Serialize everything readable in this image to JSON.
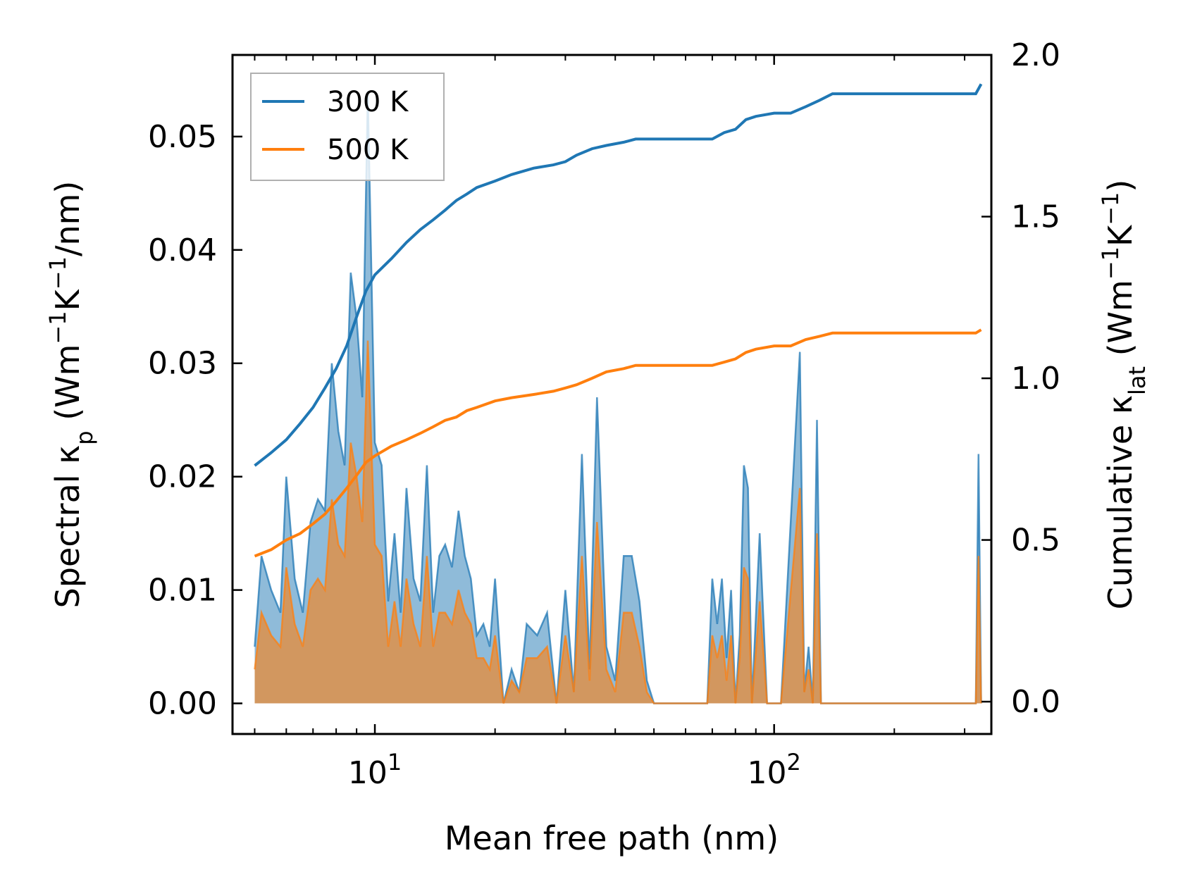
{
  "chart_data": {
    "type": "line",
    "title": "",
    "x": {
      "label": "Mean free path (nm)",
      "scale": "log",
      "range": [
        4.4,
        350
      ],
      "major_ticks": [
        {
          "value": 10,
          "label": "10^1"
        },
        {
          "value": 100,
          "label": "10^2"
        }
      ]
    },
    "y_left": {
      "label": "Spectral κp (Wm^-1K^-1/nm)",
      "range": [
        -0.0027,
        0.0572
      ],
      "ticks": [
        0.0,
        0.01,
        0.02,
        0.03,
        0.04,
        0.05
      ],
      "tick_labels": [
        "0.00",
        "0.01",
        "0.02",
        "0.03",
        "0.04",
        "0.05"
      ]
    },
    "y_right": {
      "label": "Cumulative κlat (Wm^-1K^-1)",
      "range": [
        -0.1,
        2.0
      ],
      "ticks": [
        0.0,
        0.5,
        1.0,
        1.5,
        2.0
      ],
      "tick_labels": [
        "0.0",
        "0.5",
        "1.0",
        "1.5",
        "2.0"
      ]
    },
    "legend": {
      "position": "top-left",
      "entries": [
        "300 K",
        "500 K"
      ]
    },
    "spectral_x": [
      5.0,
      5.2,
      5.5,
      5.8,
      6.0,
      6.3,
      6.6,
      6.9,
      7.2,
      7.5,
      7.8,
      8.1,
      8.4,
      8.7,
      9.0,
      9.3,
      9.6,
      10.0,
      10.4,
      10.8,
      11.2,
      11.6,
      12.0,
      12.5,
      13.0,
      13.5,
      14.0,
      14.5,
      15.0,
      15.6,
      16.2,
      16.8,
      17.4,
      18.0,
      18.7,
      19.4,
      20.0,
      21.0,
      22.0,
      23.0,
      24.0,
      25.5,
      27.0,
      28.5,
      30.0,
      31.5,
      33.0,
      34.5,
      36.0,
      38.0,
      40.0,
      42.0,
      44.0,
      46.0,
      48.0,
      50.0,
      68.0,
      70.0,
      72.0,
      74.0,
      76.0,
      78.0,
      80.0,
      82.0,
      84.0,
      86.0,
      88.0,
      92.0,
      96.0,
      100.0,
      104.0,
      116.0,
      119.0,
      122.0,
      125.0,
      128.0,
      131.0,
      134.0,
      137.0,
      140.0,
      320.0,
      325.0,
      330.0
    ],
    "series": [
      {
        "name": "300 K",
        "color": "#1f77b4",
        "spectral": [
          0.005,
          0.013,
          0.01,
          0.008,
          0.02,
          0.011,
          0.008,
          0.016,
          0.018,
          0.017,
          0.03,
          0.024,
          0.021,
          0.038,
          0.034,
          0.027,
          0.054,
          0.023,
          0.021,
          0.009,
          0.015,
          0.008,
          0.019,
          0.011,
          0.009,
          0.021,
          0.008,
          0.013,
          0.014,
          0.012,
          0.017,
          0.013,
          0.011,
          0.006,
          0.007,
          0.005,
          0.011,
          0.0,
          0.003,
          0.001,
          0.007,
          0.006,
          0.008,
          0.0,
          0.01,
          0.001,
          0.022,
          0.003,
          0.027,
          0.005,
          0.002,
          0.013,
          0.013,
          0.009,
          0.002,
          0.0,
          0.0,
          0.011,
          0.007,
          0.011,
          0.004,
          0.01,
          0.0,
          0.006,
          0.021,
          0.019,
          0.0,
          0.015,
          0.0,
          0.0,
          0.0,
          0.031,
          0.001,
          0.005,
          0.0,
          0.025,
          0.0,
          0.0,
          0.0,
          0.0,
          0.0,
          0.022,
          0.0
        ],
        "cumulative_x": [
          5.0,
          5.5,
          6.0,
          6.5,
          7.0,
          7.5,
          8.0,
          8.5,
          9.0,
          9.5,
          10.0,
          11.0,
          12.0,
          13.0,
          14.0,
          15.0,
          16.0,
          17.0,
          18.0,
          20.0,
          22.0,
          25.0,
          28.0,
          30.0,
          32.0,
          35.0,
          38.0,
          42.0,
          45.0,
          50.0,
          70.0,
          75.0,
          80.0,
          85.0,
          90.0,
          100.0,
          110.0,
          120.0,
          130.0,
          140.0,
          320.0,
          330.0
        ],
        "cumulative": [
          0.73,
          0.77,
          0.81,
          0.86,
          0.91,
          0.97,
          1.03,
          1.1,
          1.19,
          1.27,
          1.32,
          1.37,
          1.42,
          1.46,
          1.49,
          1.52,
          1.55,
          1.57,
          1.59,
          1.61,
          1.63,
          1.65,
          1.66,
          1.67,
          1.69,
          1.71,
          1.72,
          1.73,
          1.74,
          1.74,
          1.74,
          1.76,
          1.77,
          1.8,
          1.81,
          1.82,
          1.82,
          1.84,
          1.86,
          1.88,
          1.88,
          1.91
        ]
      },
      {
        "name": "500 K",
        "color": "#ff7f0e",
        "spectral": [
          0.003,
          0.008,
          0.006,
          0.005,
          0.012,
          0.007,
          0.005,
          0.01,
          0.011,
          0.01,
          0.018,
          0.014,
          0.013,
          0.023,
          0.02,
          0.016,
          0.032,
          0.014,
          0.013,
          0.005,
          0.009,
          0.005,
          0.011,
          0.007,
          0.005,
          0.013,
          0.005,
          0.008,
          0.008,
          0.007,
          0.01,
          0.008,
          0.007,
          0.004,
          0.004,
          0.003,
          0.006,
          0.0,
          0.002,
          0.001,
          0.004,
          0.004,
          0.005,
          0.0,
          0.006,
          0.001,
          0.013,
          0.002,
          0.016,
          0.003,
          0.001,
          0.008,
          0.008,
          0.005,
          0.001,
          0.0,
          0.0,
          0.006,
          0.004,
          0.006,
          0.002,
          0.006,
          0.0,
          0.004,
          0.012,
          0.011,
          0.0,
          0.009,
          0.0,
          0.0,
          0.0,
          0.019,
          0.001,
          0.003,
          0.0,
          0.015,
          0.0,
          0.0,
          0.0,
          0.0,
          0.0,
          0.013,
          0.0
        ],
        "cumulative_x": [
          5.0,
          5.5,
          6.0,
          6.5,
          7.0,
          7.5,
          8.0,
          8.5,
          9.0,
          9.5,
          10.0,
          11.0,
          12.0,
          13.0,
          14.0,
          15.0,
          16.0,
          17.0,
          18.0,
          20.0,
          22.0,
          25.0,
          28.0,
          30.0,
          32.0,
          35.0,
          38.0,
          42.0,
          45.0,
          50.0,
          70.0,
          75.0,
          80.0,
          85.0,
          90.0,
          100.0,
          110.0,
          120.0,
          130.0,
          140.0,
          320.0,
          330.0
        ],
        "cumulative": [
          0.45,
          0.47,
          0.5,
          0.52,
          0.55,
          0.58,
          0.62,
          0.66,
          0.7,
          0.74,
          0.76,
          0.79,
          0.81,
          0.83,
          0.85,
          0.87,
          0.88,
          0.9,
          0.91,
          0.93,
          0.94,
          0.95,
          0.96,
          0.97,
          0.98,
          1.0,
          1.02,
          1.03,
          1.04,
          1.04,
          1.04,
          1.05,
          1.06,
          1.08,
          1.09,
          1.1,
          1.1,
          1.12,
          1.13,
          1.14,
          1.14,
          1.15
        ]
      }
    ]
  }
}
